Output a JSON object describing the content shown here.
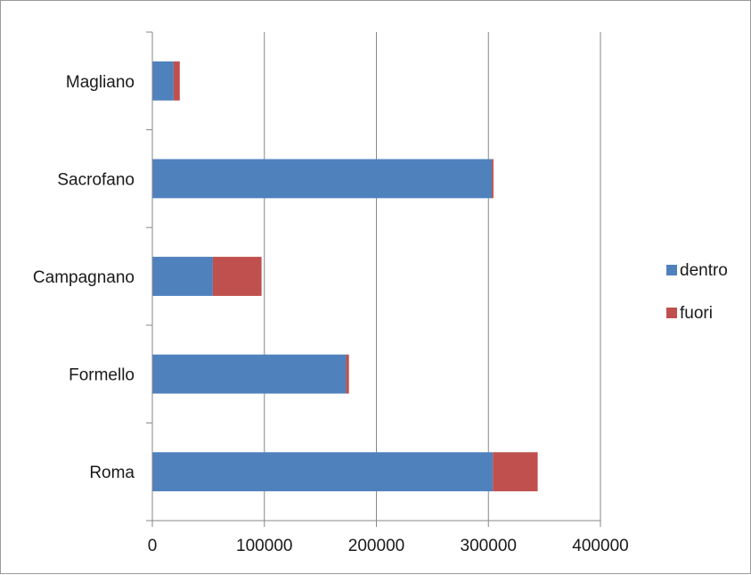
{
  "chart_data": {
    "type": "bar",
    "orientation": "horizontal",
    "stacked": true,
    "categories": [
      "Magliano",
      "Sacrofano",
      "Campagnano",
      "Formello",
      "Roma"
    ],
    "series": [
      {
        "name": "dentro",
        "color": "#4f81bd",
        "values": [
          19000,
          303000,
          54000,
          173000,
          304000
        ]
      },
      {
        "name": "fuori",
        "color": "#c0504d",
        "values": [
          5500,
          1500,
          43500,
          2500,
          40000
        ]
      }
    ],
    "xlim": [
      0,
      400000
    ],
    "xticks": [
      0,
      100000,
      200000,
      300000,
      400000
    ],
    "xtick_labels": [
      "0",
      "100000",
      "200000",
      "300000",
      "400000"
    ],
    "grid": "vertical",
    "legend_position": "right",
    "title": "",
    "xlabel": "",
    "ylabel": ""
  }
}
